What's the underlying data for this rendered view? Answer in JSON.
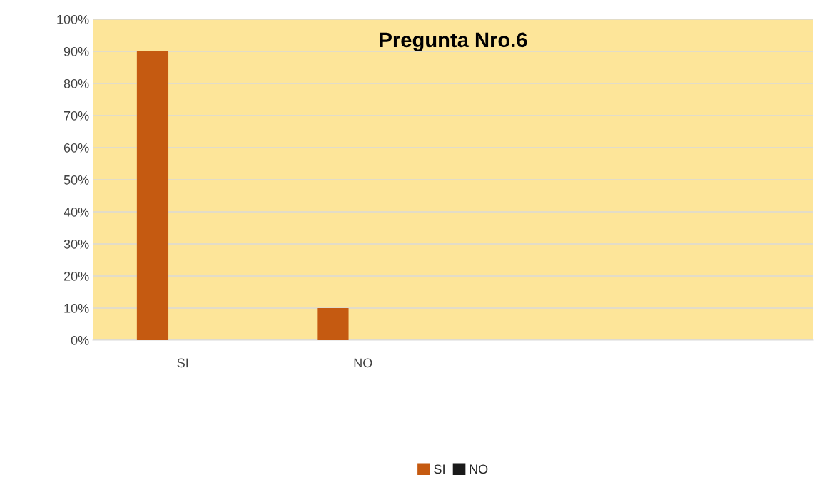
{
  "chart_data": {
    "type": "bar",
    "title": "Pregunta Nro.6",
    "categories": [
      "SI",
      "NO",
      null,
      null
    ],
    "series": [
      {
        "name": "SI",
        "color": "#c55a11",
        "values": [
          90,
          10,
          null,
          null
        ]
      },
      {
        "name": "NO",
        "color": "#1a1a1a",
        "values": [
          0,
          0,
          null,
          null
        ]
      }
    ],
    "ylim": [
      0,
      100
    ],
    "yticks": [
      {
        "value": 0,
        "label": "0%"
      },
      {
        "value": 10,
        "label": "10%"
      },
      {
        "value": 20,
        "label": "20%"
      },
      {
        "value": 30,
        "label": "30%"
      },
      {
        "value": 40,
        "label": "40%"
      },
      {
        "value": 50,
        "label": "50%"
      },
      {
        "value": 60,
        "label": "60%"
      },
      {
        "value": 70,
        "label": "70%"
      },
      {
        "value": 80,
        "label": "80%"
      },
      {
        "value": 90,
        "label": "90%"
      },
      {
        "value": 100,
        "label": "100%"
      }
    ],
    "grid": "y",
    "legend": "bottom"
  }
}
